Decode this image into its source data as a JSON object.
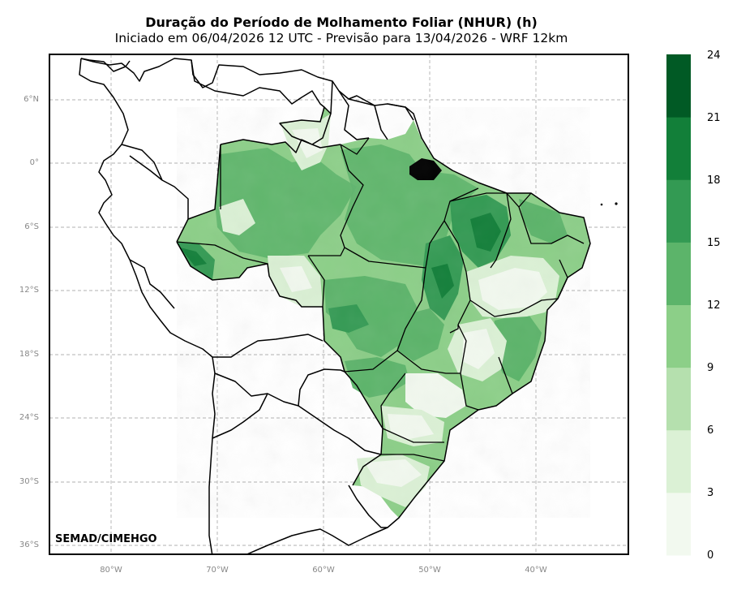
{
  "title": "Duração do Período de Molhamento Foliar (NHUR) (h)",
  "subtitle": "Iniciado em 06/04/2026 12 UTC - Previsão para 13/04/2026 - WRF 12km",
  "credit": "SEMAD/CIMEHGO",
  "lat_ticks": [
    "6°N",
    "0°",
    "6°S",
    "12°S",
    "18°S",
    "24°S",
    "30°S",
    "36°S"
  ],
  "lon_ticks": [
    "80°W",
    "70°W",
    "60°W",
    "50°W",
    "40°W"
  ],
  "colorbar": {
    "ticks": [
      "24",
      "21",
      "18",
      "15",
      "12",
      "9",
      "6",
      "3",
      "0"
    ],
    "colors": [
      "#f2f9ef",
      "#dbf1d5",
      "#b5e0ae",
      "#8ccf88",
      "#5cb46a",
      "#339a53",
      "#127f39",
      "#015a25"
    ]
  },
  "map_colors": {
    "land": "#ffffff",
    "ocean": "#ffffff",
    "border": "#000000",
    "grid": "#b0b0b0"
  }
}
